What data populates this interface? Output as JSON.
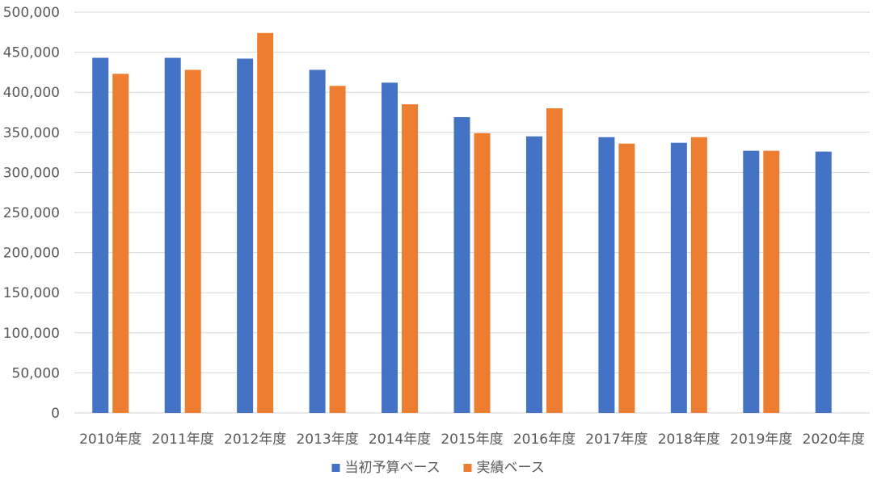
{
  "chart_data": {
    "type": "bar",
    "categories": [
      "2010年度",
      "2011年度",
      "2012年度",
      "2013年度",
      "2014年度",
      "2015年度",
      "2016年度",
      "2017年度",
      "2018年度",
      "2019年度",
      "2020年度"
    ],
    "series": [
      {
        "name": "当初予算ベース",
        "color": "#4472C4",
        "values": [
          443000,
          443000,
          442000,
          428000,
          412000,
          369000,
          345000,
          344000,
          337000,
          327000,
          326000
        ]
      },
      {
        "name": "実績ベース",
        "color": "#ED7D31",
        "values": [
          423000,
          428000,
          474000,
          408000,
          385000,
          349000,
          380000,
          336000,
          344000,
          327000,
          null
        ]
      }
    ],
    "ylim": [
      0,
      500000
    ],
    "yticks": [
      "0",
      "50,000",
      "100,000",
      "150,000",
      "200,000",
      "250,000",
      "300,000",
      "350,000",
      "400,000",
      "450,000",
      "500,000"
    ],
    "grid": true,
    "legend_position": "bottom",
    "title": "",
    "xlabel": "",
    "ylabel": ""
  }
}
